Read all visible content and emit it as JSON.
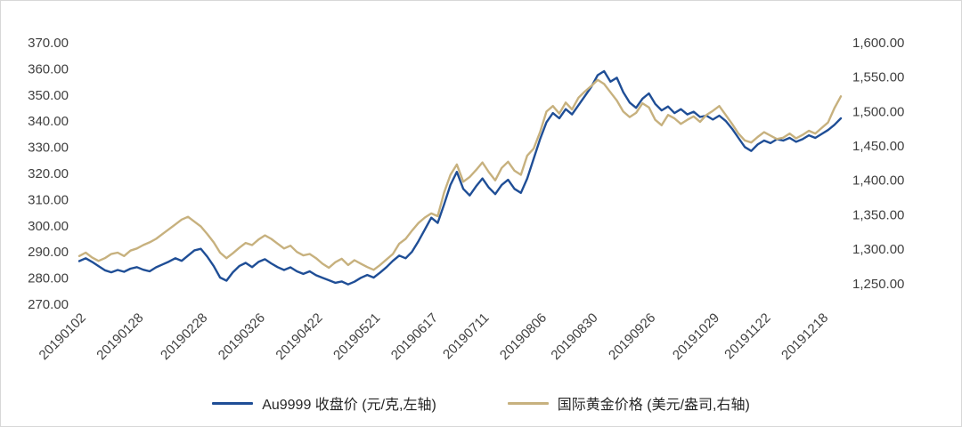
{
  "chart_data": {
    "type": "line",
    "title": "",
    "x_tick_labels": [
      "20190102",
      "20190128",
      "20190228",
      "20190326",
      "20190422",
      "20190521",
      "20190617",
      "20190711",
      "20190806",
      "20190830",
      "20190926",
      "20191029",
      "20191122",
      "20191218"
    ],
    "x_tick_indices": [
      0,
      9,
      19,
      28,
      37,
      46,
      55,
      63,
      72,
      80,
      89,
      99,
      107,
      116
    ],
    "left_axis": {
      "min": 270,
      "max": 370,
      "step": 10,
      "tick_values": [
        370,
        360,
        350,
        340,
        330,
        320,
        310,
        300,
        290,
        280,
        270
      ],
      "tick_labels": [
        "370.00",
        "360.00",
        "350.00",
        "340.00",
        "330.00",
        "320.00",
        "310.00",
        "300.00",
        "290.00",
        "280.00",
        "270.00"
      ]
    },
    "right_axis": {
      "min": 1250,
      "max": 1600,
      "step": 50,
      "tick_values": [
        1600,
        1550,
        1500,
        1450,
        1400,
        1350,
        1300,
        1250
      ],
      "tick_labels": [
        "1,600.00",
        "1,550.00",
        "1,500.00",
        "1,450.00",
        "1,400.00",
        "1,350.00",
        "1,300.00",
        "1,250.00"
      ]
    },
    "grid": "off",
    "legend_position": "bottom",
    "series": [
      {
        "name": "Au9999 收盘价 (元/克,左轴)",
        "axis": "left",
        "color": "#1F4E96",
        "values": [
          286.5,
          287.6,
          286.2,
          284.6,
          283.0,
          282.2,
          283.1,
          282.4,
          283.6,
          284.2,
          283.2,
          282.6,
          284.1,
          285.2,
          286.3,
          287.6,
          286.6,
          288.6,
          290.6,
          291.2,
          288.2,
          284.6,
          280.2,
          279.0,
          282.2,
          284.6,
          285.8,
          284.2,
          286.2,
          287.2,
          285.6,
          284.2,
          283.1,
          284.1,
          282.6,
          281.6,
          282.6,
          281.1,
          280.1,
          279.2,
          278.2,
          278.7,
          277.6,
          278.6,
          280.1,
          281.2,
          280.2,
          282.1,
          284.2,
          286.6,
          288.6,
          287.6,
          290.1,
          294.1,
          298.6,
          303.1,
          301.1,
          308.1,
          315.6,
          320.6,
          314.1,
          311.6,
          315.1,
          318.1,
          314.6,
          312.1,
          315.6,
          317.6,
          314.1,
          312.6,
          318.1,
          325.6,
          333.1,
          339.6,
          343.1,
          341.1,
          344.6,
          342.6,
          346.1,
          349.6,
          353.1,
          357.6,
          359.1,
          355.1,
          356.6,
          351.1,
          347.1,
          345.1,
          348.6,
          350.6,
          346.6,
          344.1,
          345.6,
          343.1,
          344.6,
          342.6,
          343.6,
          341.6,
          342.1,
          340.6,
          342.1,
          340.1,
          337.1,
          333.6,
          330.1,
          328.6,
          331.1,
          332.6,
          331.6,
          333.1,
          332.6,
          333.6,
          332.1,
          333.1,
          334.6,
          333.6,
          335.1,
          336.6,
          338.6,
          341.1
        ]
      },
      {
        "name": "国际黄金价格 (美元/盎司,右轴)",
        "axis": "right",
        "color": "#C7B17E",
        "values": [
          1290,
          1295,
          1288,
          1283,
          1287,
          1293,
          1295,
          1290,
          1298,
          1301,
          1306,
          1310,
          1315,
          1322,
          1329,
          1336,
          1343,
          1347,
          1340,
          1333,
          1322,
          1310,
          1295,
          1287,
          1294,
          1302,
          1309,
          1306,
          1314,
          1320,
          1315,
          1308,
          1301,
          1305,
          1296,
          1291,
          1293,
          1287,
          1279,
          1273,
          1281,
          1286,
          1277,
          1284,
          1279,
          1274,
          1270,
          1277,
          1285,
          1293,
          1308,
          1315,
          1327,
          1338,
          1346,
          1352,
          1348,
          1382,
          1408,
          1423,
          1398,
          1405,
          1415,
          1426,
          1412,
          1400,
          1418,
          1427,
          1414,
          1408,
          1436,
          1446,
          1470,
          1500,
          1508,
          1497,
          1513,
          1503,
          1520,
          1529,
          1537,
          1546,
          1540,
          1528,
          1516,
          1500,
          1492,
          1498,
          1512,
          1506,
          1488,
          1480,
          1495,
          1490,
          1482,
          1488,
          1493,
          1485,
          1495,
          1501,
          1508,
          1495,
          1482,
          1468,
          1458,
          1455,
          1463,
          1470,
          1465,
          1460,
          1462,
          1468,
          1461,
          1466,
          1472,
          1468,
          1476,
          1484,
          1505,
          1522
        ]
      }
    ]
  }
}
